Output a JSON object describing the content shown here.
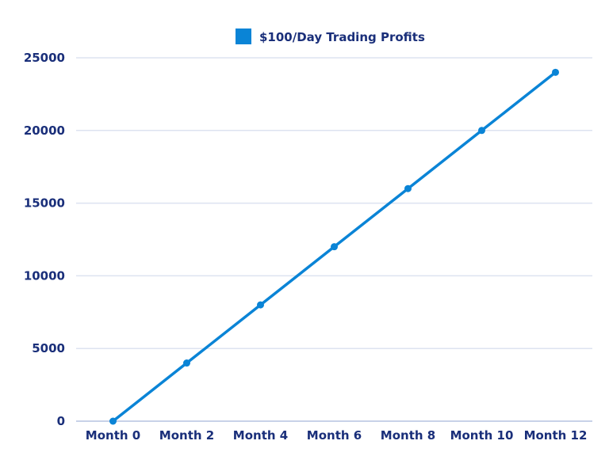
{
  "chart_data": {
    "type": "line",
    "title": "",
    "xlabel": "",
    "ylabel": "",
    "categories": [
      "Month 0",
      "Month 2",
      "Month 4",
      "Month 6",
      "Month 8",
      "Month 10",
      "Month 12"
    ],
    "series": [
      {
        "name": "$100/Day Trading Profits",
        "values": [
          0,
          4000,
          8000,
          12000,
          16000,
          20000,
          24000
        ],
        "color": "#0a84d6"
      }
    ],
    "y_ticks": [
      "0",
      "5000",
      "10000",
      "15000",
      "20000",
      "25000"
    ],
    "ylim": [
      0,
      25000
    ],
    "grid": true,
    "legend_position": "top"
  },
  "colors": {
    "line": "#0a84d6",
    "grid": "#dde3f0",
    "axis": "#b5c3e0",
    "text": "#1a2f7a"
  }
}
